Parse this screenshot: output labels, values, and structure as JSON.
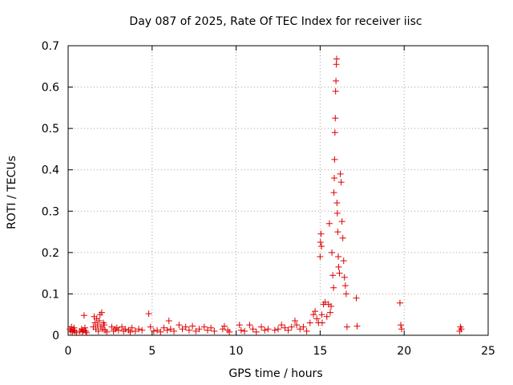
{
  "chart_data": {
    "type": "scatter",
    "title": "Day 087 of 2025, Rate Of TEC Index for receiver iisc",
    "xlabel": "GPS time / hours",
    "ylabel": "ROTI / TECUs",
    "xlim": [
      0,
      25
    ],
    "ylim": [
      0,
      0.7
    ],
    "xticks": [
      "0",
      "5",
      "10",
      "15",
      "20",
      "25"
    ],
    "yticks": [
      "0",
      "0.1",
      "0.2",
      "0.3",
      "0.4",
      "0.5",
      "0.6",
      "0.7"
    ],
    "grid": true,
    "marker": "plus",
    "color": "#dd0000",
    "points": [
      [
        0.1,
        0.015
      ],
      [
        0.15,
        0.01
      ],
      [
        0.2,
        0.02
      ],
      [
        0.25,
        0.008
      ],
      [
        0.3,
        0.012
      ],
      [
        0.35,
        0.018
      ],
      [
        0.4,
        0.01
      ],
      [
        0.5,
        0.006
      ],
      [
        0.7,
        0.01
      ],
      [
        0.8,
        0.015
      ],
      [
        0.85,
        0.008
      ],
      [
        0.9,
        0.012
      ],
      [
        0.95,
        0.048
      ],
      [
        1.0,
        0.018
      ],
      [
        1.05,
        0.01
      ],
      [
        1.1,
        0.006
      ],
      [
        1.5,
        0.02
      ],
      [
        1.55,
        0.045
      ],
      [
        1.6,
        0.03
      ],
      [
        1.65,
        0.015
      ],
      [
        1.7,
        0.04
      ],
      [
        1.75,
        0.025
      ],
      [
        1.8,
        0.01
      ],
      [
        1.85,
        0.035
      ],
      [
        1.9,
        0.05
      ],
      [
        1.95,
        0.02
      ],
      [
        2.0,
        0.055
      ],
      [
        2.05,
        0.015
      ],
      [
        2.1,
        0.03
      ],
      [
        2.15,
        0.025
      ],
      [
        2.2,
        0.012
      ],
      [
        2.3,
        0.008
      ],
      [
        2.6,
        0.02
      ],
      [
        2.7,
        0.01
      ],
      [
        2.8,
        0.015
      ],
      [
        2.9,
        0.018
      ],
      [
        3.0,
        0.012
      ],
      [
        3.2,
        0.02
      ],
      [
        3.3,
        0.01
      ],
      [
        3.4,
        0.015
      ],
      [
        3.6,
        0.012
      ],
      [
        3.7,
        0.008
      ],
      [
        3.8,
        0.018
      ],
      [
        4.0,
        0.01
      ],
      [
        4.2,
        0.015
      ],
      [
        4.4,
        0.012
      ],
      [
        4.8,
        0.052
      ],
      [
        4.9,
        0.02
      ],
      [
        5.1,
        0.01
      ],
      [
        5.3,
        0.012
      ],
      [
        5.5,
        0.008
      ],
      [
        5.7,
        0.018
      ],
      [
        5.9,
        0.012
      ],
      [
        6.0,
        0.035
      ],
      [
        6.1,
        0.015
      ],
      [
        6.3,
        0.01
      ],
      [
        6.6,
        0.025
      ],
      [
        6.8,
        0.015
      ],
      [
        7.0,
        0.02
      ],
      [
        7.2,
        0.012
      ],
      [
        7.4,
        0.022
      ],
      [
        7.6,
        0.01
      ],
      [
        7.8,
        0.015
      ],
      [
        8.1,
        0.02
      ],
      [
        8.3,
        0.012
      ],
      [
        8.5,
        0.018
      ],
      [
        8.7,
        0.01
      ],
      [
        9.2,
        0.015
      ],
      [
        9.3,
        0.022
      ],
      [
        9.5,
        0.012
      ],
      [
        9.6,
        0.008
      ],
      [
        10.2,
        0.025
      ],
      [
        10.3,
        0.012
      ],
      [
        10.5,
        0.01
      ],
      [
        10.8,
        0.025
      ],
      [
        11.0,
        0.015
      ],
      [
        11.2,
        0.008
      ],
      [
        11.5,
        0.02
      ],
      [
        11.7,
        0.012
      ],
      [
        11.9,
        0.015
      ],
      [
        12.3,
        0.012
      ],
      [
        12.5,
        0.015
      ],
      [
        12.7,
        0.025
      ],
      [
        12.9,
        0.018
      ],
      [
        13.1,
        0.012
      ],
      [
        13.3,
        0.02
      ],
      [
        13.5,
        0.035
      ],
      [
        13.6,
        0.025
      ],
      [
        13.8,
        0.015
      ],
      [
        14.0,
        0.02
      ],
      [
        14.2,
        0.01
      ],
      [
        14.4,
        0.03
      ],
      [
        14.6,
        0.05
      ],
      [
        14.7,
        0.058
      ],
      [
        14.8,
        0.04
      ],
      [
        14.9,
        0.03
      ],
      [
        15.0,
        0.19
      ],
      [
        15.02,
        0.225
      ],
      [
        15.05,
        0.245
      ],
      [
        15.08,
        0.215
      ],
      [
        15.1,
        0.05
      ],
      [
        15.12,
        0.03
      ],
      [
        15.2,
        0.075
      ],
      [
        15.3,
        0.08
      ],
      [
        15.4,
        0.045
      ],
      [
        15.5,
        0.075
      ],
      [
        15.55,
        0.27
      ],
      [
        15.6,
        0.055
      ],
      [
        15.65,
        0.07
      ],
      [
        15.7,
        0.2
      ],
      [
        15.75,
        0.145
      ],
      [
        15.8,
        0.115
      ],
      [
        15.82,
        0.345
      ],
      [
        15.84,
        0.38
      ],
      [
        15.86,
        0.425
      ],
      [
        15.88,
        0.49
      ],
      [
        15.9,
        0.525
      ],
      [
        15.92,
        0.59
      ],
      [
        15.94,
        0.615
      ],
      [
        15.96,
        0.655
      ],
      [
        15.98,
        0.668
      ],
      [
        16.0,
        0.32
      ],
      [
        16.02,
        0.295
      ],
      [
        16.05,
        0.25
      ],
      [
        16.08,
        0.19
      ],
      [
        16.1,
        0.165
      ],
      [
        16.15,
        0.15
      ],
      [
        16.2,
        0.39
      ],
      [
        16.25,
        0.37
      ],
      [
        16.3,
        0.275
      ],
      [
        16.35,
        0.235
      ],
      [
        16.4,
        0.18
      ],
      [
        16.45,
        0.14
      ],
      [
        16.5,
        0.12
      ],
      [
        16.55,
        0.1
      ],
      [
        16.6,
        0.02
      ],
      [
        17.15,
        0.09
      ],
      [
        17.2,
        0.022
      ],
      [
        19.75,
        0.078
      ],
      [
        19.8,
        0.025
      ],
      [
        19.85,
        0.015
      ],
      [
        23.3,
        0.01
      ],
      [
        23.35,
        0.02
      ],
      [
        23.4,
        0.015
      ]
    ]
  }
}
